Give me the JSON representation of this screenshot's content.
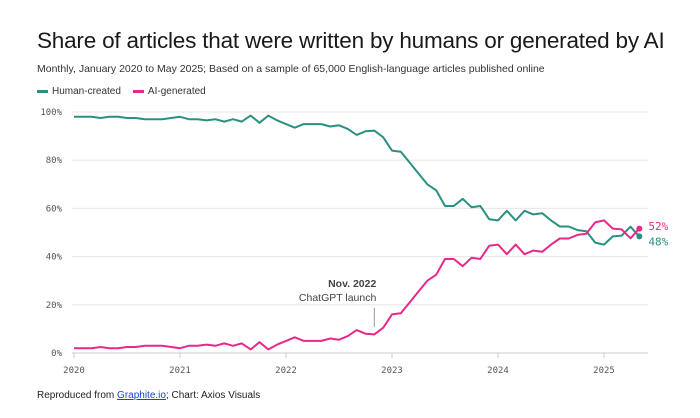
{
  "title": "Share of articles that were written by humans or generated by AI",
  "subtitle": "Monthly, January 2020 to May 2025; Based on a sample of 65,000 English-language articles published online",
  "footer": {
    "prefix": "Reproduced from ",
    "link": "Graphite.io",
    "suffix": "; Chart: Axios Visuals"
  },
  "chart_data": {
    "type": "line",
    "x_start": "2020-01",
    "x_end": "2025-05",
    "x_frequency": "monthly",
    "x_ticks": [
      "2020",
      "2021",
      "2022",
      "2023",
      "2024",
      "2025"
    ],
    "y_ticks": [
      "0%",
      "20%",
      "40%",
      "60%",
      "80%",
      "100%"
    ],
    "ylim": [
      0,
      100
    ],
    "grid": true,
    "legend_position": "top-left",
    "series": [
      {
        "name": "Human-created",
        "color": "#2a9080",
        "end_label": "48%",
        "values": [
          98,
          98,
          98,
          97.5,
          98,
          98,
          97.5,
          97.5,
          97,
          97,
          97,
          97.5,
          98,
          97,
          97,
          96.5,
          97,
          96,
          97,
          96,
          98.5,
          95.5,
          98.5,
          96.5,
          95,
          93.5,
          95,
          95,
          95,
          94,
          94.5,
          93,
          90.5,
          92,
          92.3,
          89.5,
          84,
          83.5,
          79,
          74.5,
          70,
          67.5,
          61,
          61,
          64,
          60.5,
          61,
          55.5,
          55,
          59,
          55,
          59,
          57.5,
          58,
          55,
          52.5,
          52.5,
          51,
          50.5,
          45.8,
          45,
          48.4,
          48.7,
          52.4,
          48.4
        ]
      },
      {
        "name": "AI-generated",
        "color": "#e8298a",
        "end_label": "52%",
        "values": [
          2,
          2,
          2,
          2.5,
          2,
          2,
          2.5,
          2.5,
          3,
          3,
          3,
          2.5,
          2,
          3,
          3,
          3.5,
          3,
          4,
          3,
          4,
          1.5,
          4.5,
          1.5,
          3.5,
          5,
          6.5,
          5,
          5,
          5,
          6,
          5.5,
          7,
          9.5,
          8,
          7.7,
          10.5,
          16,
          16.5,
          21,
          25.5,
          30,
          32.5,
          39,
          39,
          36,
          39.5,
          39,
          44.5,
          45,
          41,
          45,
          41,
          42.5,
          42,
          45,
          47.5,
          47.5,
          49,
          49.5,
          54.2,
          55,
          51.6,
          51.3,
          47.6,
          51.6
        ]
      }
    ],
    "annotation": {
      "date": "2022-11",
      "title": "Nov. 2022",
      "text": "ChatGPT launch"
    }
  }
}
